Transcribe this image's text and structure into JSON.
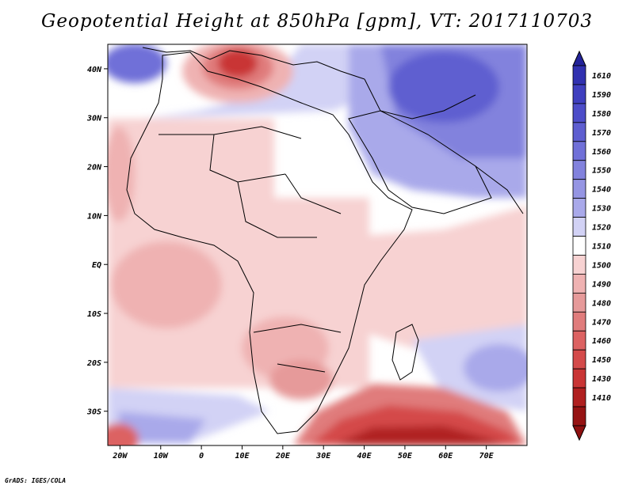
{
  "title": "Geopotential Height at 850hPa [gpm], VT: 2017110703",
  "credit": "GrADS: IGES/COLA",
  "map": {
    "variable": "Geopotential Height at 850hPa",
    "units": "gpm",
    "valid_time": "2017110703",
    "lon_range": [
      -23,
      80
    ],
    "lat_range": [
      -37,
      45
    ],
    "x_ticks": [
      "20W",
      "10W",
      "0",
      "10E",
      "20E",
      "30E",
      "40E",
      "50E",
      "60E",
      "70E"
    ],
    "y_ticks": [
      "40N",
      "30N",
      "20N",
      "10N",
      "EQ",
      "10S",
      "20S",
      "30S"
    ]
  },
  "colorbar": {
    "levels": [
      "1610",
      "1590",
      "1580",
      "1570",
      "1560",
      "1550",
      "1540",
      "1530",
      "1520",
      "1510",
      "1500",
      "1490",
      "1480",
      "1470",
      "1460",
      "1450",
      "1430",
      "1410"
    ],
    "colors": [
      "#3131b0",
      "#3f3fbf",
      "#4d4dc9",
      "#5e5ed0",
      "#7070d8",
      "#8282dd",
      "#9595e3",
      "#a9a9ea",
      "#d2d2f5",
      "#ffffff",
      "#f7d2d2",
      "#efb2b2",
      "#e69a9a",
      "#e07c7c",
      "#dc6262",
      "#d44a4a",
      "#c93535",
      "#b02020",
      "#961313"
    ],
    "pointer_top_color": "#23239a",
    "pointer_bottom_color": "#8e1010"
  },
  "colors": {
    "warm_core": "#961313",
    "cool_core": "#3131b0",
    "background": "#ffffff"
  }
}
